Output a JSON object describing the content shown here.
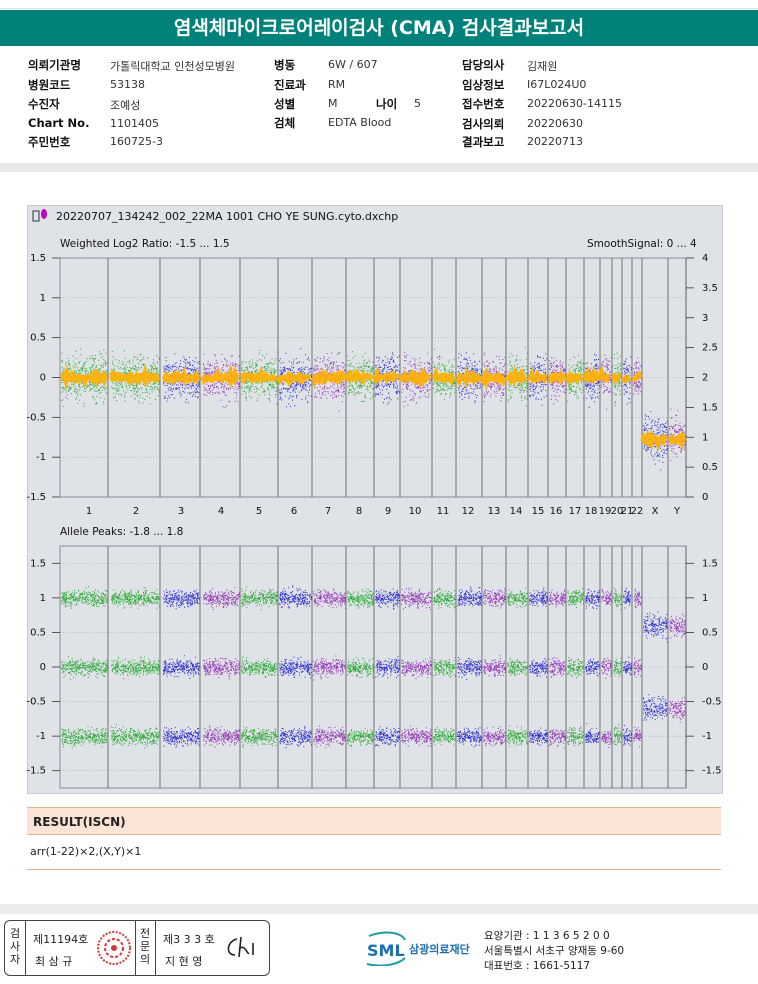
{
  "title": "염색체마이크로어레이검사 (CMA) 검사결과보고서",
  "info": {
    "hospital_label": "의뢰기관명",
    "hospital": "가톨릭대학교 인천성모병원",
    "code_label": "병원코드",
    "code": "53138",
    "patient_label": "수진자",
    "patient": "조예성",
    "chart_label": "Chart No.",
    "chart": "1101405",
    "rrn_label": "주민번호",
    "rrn": "160725-3",
    "ward_label": "병동",
    "ward": "6W / 607",
    "dept_label": "진료과",
    "dept": "RM",
    "sex_label": "성별",
    "sex": "M",
    "age_label": "나이",
    "age": "5",
    "specimen_label": "검체",
    "specimen": "EDTA Blood",
    "doctor_label": "담당의사",
    "doctor": "김재원",
    "clinical_label": "임상정보",
    "clinical": "I67L024U0",
    "receipt_label": "접수번호",
    "receipt": "20220630-14115",
    "request_label": "검사의뢰",
    "request": "20220630",
    "report_label": "결과보고",
    "report": "20220713"
  },
  "plot": {
    "file": "20220707_134242_002_22MA 1001 CHO YE SUNG.cyto.dxchp",
    "top_label": "Weighted Log2 Ratio: -1.5 ... 1.5",
    "top_right_label": "SmoothSignal: 0 ... 4",
    "bottom_label": "Allele Peaks: -1.8 ... 1.8",
    "top_left_ticks": [
      "1.5",
      "1",
      "0.5",
      "0",
      "-0.5",
      "-1",
      "-1.5"
    ],
    "top_right_ticks": [
      "4",
      "3.5",
      "3",
      "2.5",
      "2",
      "1.5",
      "1",
      "0.5",
      "0"
    ],
    "bottom_left_ticks": [
      "1.5",
      "1",
      "0.5",
      "0",
      "-0.5",
      "-1",
      "-1.5"
    ],
    "bottom_right_ticks": [
      "1.5",
      "1",
      "0.5",
      "0",
      "-0.5",
      "-1",
      "-1.5"
    ],
    "chromosomes": [
      "1",
      "2",
      "3",
      "4",
      "5",
      "6",
      "7",
      "8",
      "9",
      "10",
      "11",
      "12",
      "13",
      "14",
      "15",
      "16",
      "17",
      "18",
      "19",
      "20",
      "21",
      "22",
      "X",
      "Y"
    ],
    "colors": {
      "green": "#11a11a",
      "blue": "#1010d0",
      "purple": "#8a1fb0",
      "orange": "#ffb000"
    }
  },
  "result": {
    "header": "RESULT(ISCN)",
    "value": "arr(1-22)×2,(X,Y)×1"
  },
  "footer": {
    "sign1_vertical": [
      "검",
      "사",
      "자"
    ],
    "sign1_no": "제11194호",
    "sign1_name": "최 삼 규",
    "sign2_vertical": [
      "전",
      "문",
      "의"
    ],
    "sign2_no": "제3 3 3 호",
    "sign2_name": "지 현 영",
    "logo_text": "SML",
    "foundation": "삼광의료재단",
    "line1": "요양기관 : 1 1 3 6 5 2 0 0",
    "line2": "서울특별시 서초구 양재동 9-60",
    "line3": "대표번호 : 1661-5117"
  }
}
